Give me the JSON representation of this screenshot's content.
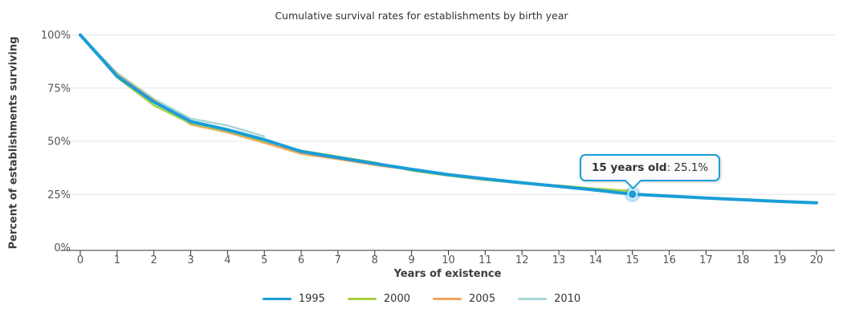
{
  "title": "Cumulative survival rates for establishments by birth year",
  "x_axis": {
    "title": "Years of existence",
    "ticks": [
      "0",
      "1",
      "2",
      "3",
      "4",
      "5",
      "6",
      "7",
      "8",
      "9",
      "10",
      "11",
      "12",
      "13",
      "14",
      "15",
      "16",
      "17",
      "18",
      "19",
      "20"
    ],
    "min": 0,
    "max": 20
  },
  "y_axis": {
    "title": "Percent of establishments surviving",
    "ticks": [
      "0%",
      "25%",
      "50%",
      "75%",
      "100%"
    ],
    "tick_values": [
      0,
      25,
      50,
      75,
      100
    ],
    "min": 0,
    "max": 100
  },
  "tooltip": {
    "label": "15 years old",
    "separator": ": ",
    "value": "25.1%"
  },
  "legend": [
    {
      "label": "1995",
      "color": "#1a9dd8"
    },
    {
      "label": "2000",
      "color": "#a8cf45"
    },
    {
      "label": "2005",
      "color": "#f7a35c"
    },
    {
      "label": "2010",
      "color": "#a6d7d8"
    }
  ],
  "colors": {
    "accent_blue": "#1a9dd8",
    "grid": "#e6e6e6",
    "axis": "#333333",
    "text": "#333333",
    "tick_text": "#555555"
  },
  "chart_data": {
    "type": "line",
    "title": "Cumulative survival rates for establishments by birth year",
    "xlabel": "Years of existence",
    "ylabel": "Percent of establishments surviving",
    "xlim": [
      0,
      20
    ],
    "ylim": [
      0,
      100
    ],
    "grid": true,
    "legend_position": "bottom",
    "x_unit": "years since birth",
    "series": [
      {
        "name": "1995",
        "color": "#1a9dd8",
        "width": 4,
        "values": [
          100,
          80.6,
          68.5,
          59.3,
          55.4,
          50.7,
          45.2,
          42.3,
          39.5,
          36.8,
          34.3,
          32.3,
          30.5,
          28.8,
          27.0,
          25.1,
          24.2,
          23.3,
          22.5,
          21.7,
          21.0
        ]
      },
      {
        "name": "2000",
        "color": "#a8cf45",
        "width": 2.5,
        "values": [
          100,
          80.0,
          66.9,
          58.3,
          54.8,
          50.0,
          45.6,
          42.8,
          40.0,
          36.2,
          33.8,
          31.8,
          30.2,
          29.2,
          27.7,
          26.6
        ]
      },
      {
        "name": "2005",
        "color": "#f7a35c",
        "width": 2.5,
        "values": [
          100,
          81.4,
          69.3,
          57.9,
          54.2,
          49.3,
          44.1,
          41.6,
          38.8,
          36.6,
          34.4
        ]
      },
      {
        "name": "2010",
        "color": "#a6d7d8",
        "width": 2.5,
        "values": [
          100,
          82.1,
          69.9,
          60.6,
          57.4,
          52.3
        ]
      }
    ],
    "highlight": {
      "series": "1995",
      "x": 15,
      "value": 25.1,
      "tooltip_text": "15 years old: 25.1%"
    }
  }
}
